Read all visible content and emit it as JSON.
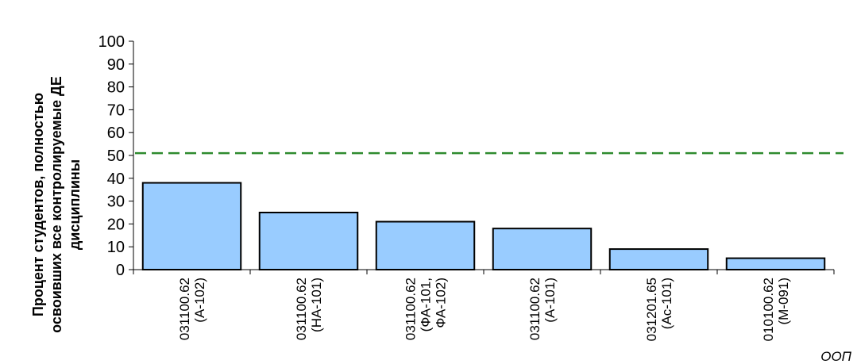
{
  "chart_data": {
    "type": "bar",
    "categories": [
      [
        "031100.62",
        "(А-102)"
      ],
      [
        "031100.62",
        "(НА-101)"
      ],
      [
        "031100.62",
        "(ФА-101,",
        "ФА-102)"
      ],
      [
        "031100.62",
        "(А-101)"
      ],
      [
        "031201.65",
        "(Ас-101)"
      ],
      [
        "010100.62",
        "(М-091)"
      ]
    ],
    "values": [
      38,
      25,
      21,
      18,
      9,
      5
    ],
    "ylabel": [
      "Процент студентов, полностью",
      "освоивших все контролируемые ДЕ",
      "дисциплины"
    ],
    "xlabel": "ООП",
    "ylim": [
      0,
      100
    ],
    "yticks": [
      0,
      10,
      20,
      30,
      40,
      50,
      60,
      70,
      80,
      90,
      100
    ],
    "reference_line": {
      "value": 51,
      "style": "dashed",
      "color": "#2e8b2e"
    },
    "bar_color": "#99ccff",
    "bar_edge_color": "#000000",
    "grid": false,
    "legend": "none"
  }
}
